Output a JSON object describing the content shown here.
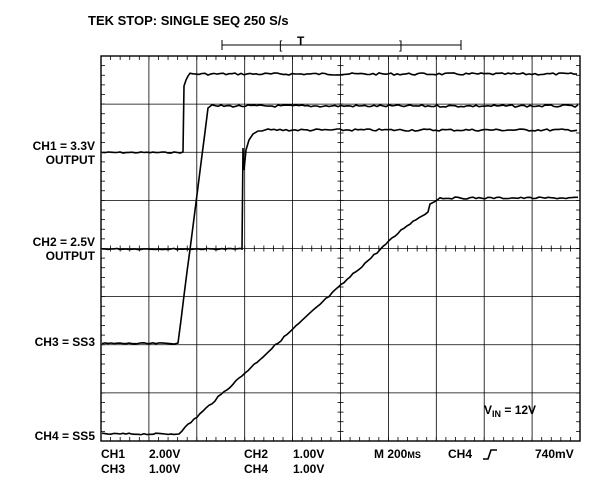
{
  "header": {
    "status": "TEK STOP: SINGLE SEQ 250 S/s"
  },
  "trigger_bar": {
    "open_bracket": "[",
    "label": "T",
    "close_bracket": "]"
  },
  "channels": {
    "ch1_line1": "CH1 = 3.3V",
    "ch1_line2": "OUTPUT",
    "ch2_line1": "CH2 = 2.5V",
    "ch2_line2": "OUTPUT",
    "ch3": "CH3 = SS3",
    "ch4": "CH4 = SS5"
  },
  "annotation": {
    "v_prefix": "V",
    "v_sub": "IN",
    "v_value": " = 12V"
  },
  "readout": {
    "ch1_name": "CH1",
    "ch1_scale": "2.00V",
    "ch2_name": "CH2",
    "ch2_scale": "1.00V",
    "ch3_name": "CH3",
    "ch3_scale": "1.00V",
    "ch4_name": "CH4",
    "ch4_scale": "1.00V",
    "timebase_m": "M 200",
    "timebase_unit": "MS",
    "trigger_channel": "CH4",
    "trigger_level": "740mV"
  },
  "colors": {
    "trace": "#000000",
    "grid": "#000000",
    "background": "#ffffff"
  }
}
